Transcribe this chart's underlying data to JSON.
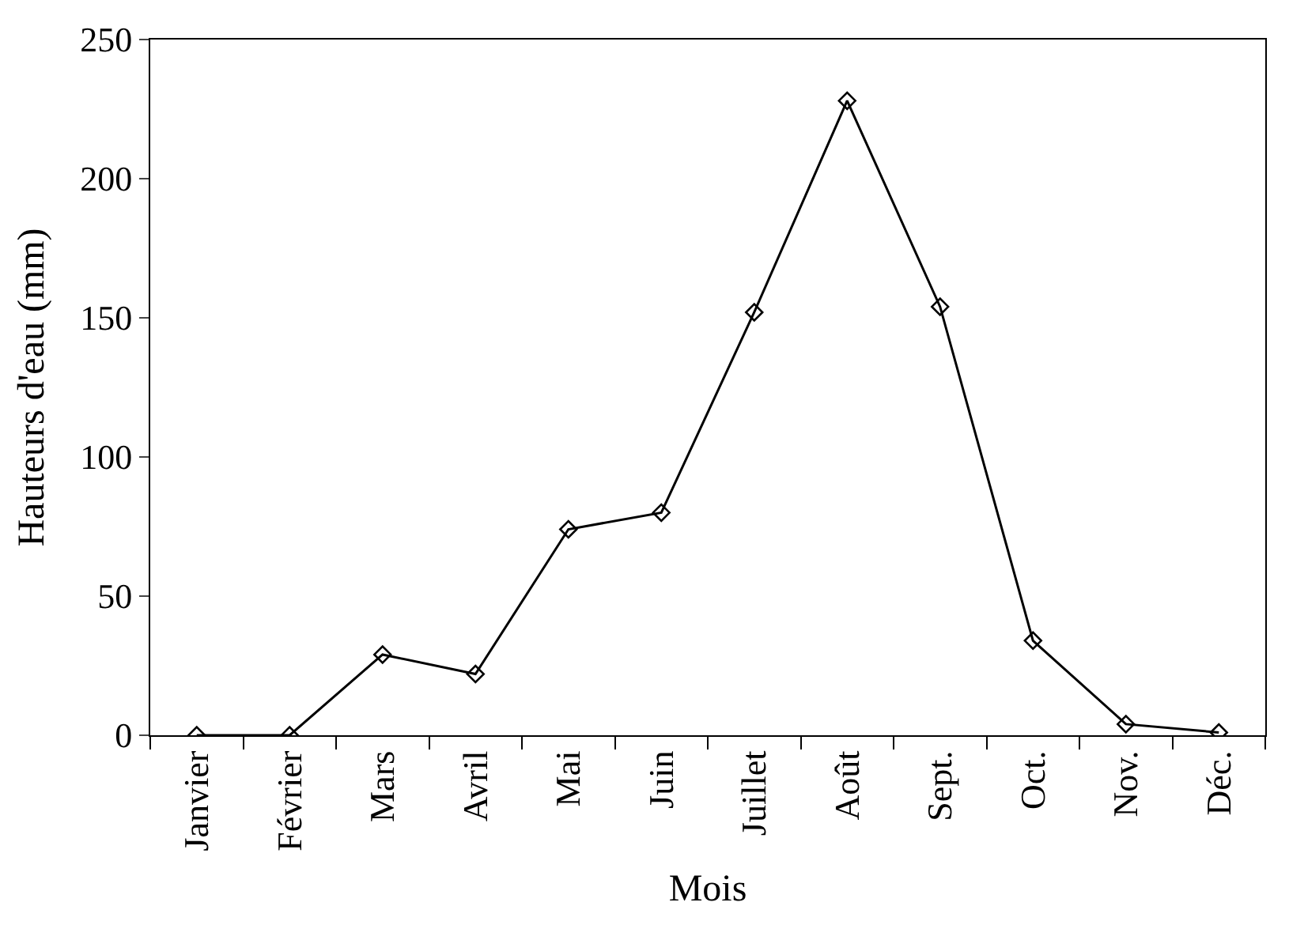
{
  "chart_data": {
    "type": "line",
    "xlabel": "Mois",
    "ylabel": "Hauteurs d'eau (mm)",
    "categories": [
      "Janvier",
      "Février",
      "Mars",
      "Avril",
      "Mai",
      "Juin",
      "Juillet",
      "Août",
      "Sept.",
      "Oct.",
      "Nov.",
      "Déc."
    ],
    "series": [
      {
        "color": "#000000",
        "values": [
          0,
          0,
          29,
          22,
          74,
          80,
          152,
          228,
          154,
          34,
          4,
          1
        ]
      }
    ],
    "ylim": [
      0,
      250
    ],
    "yticks": [
      0,
      50,
      100,
      150,
      200,
      250
    ],
    "marker": "diamond",
    "line_style": "solid"
  }
}
